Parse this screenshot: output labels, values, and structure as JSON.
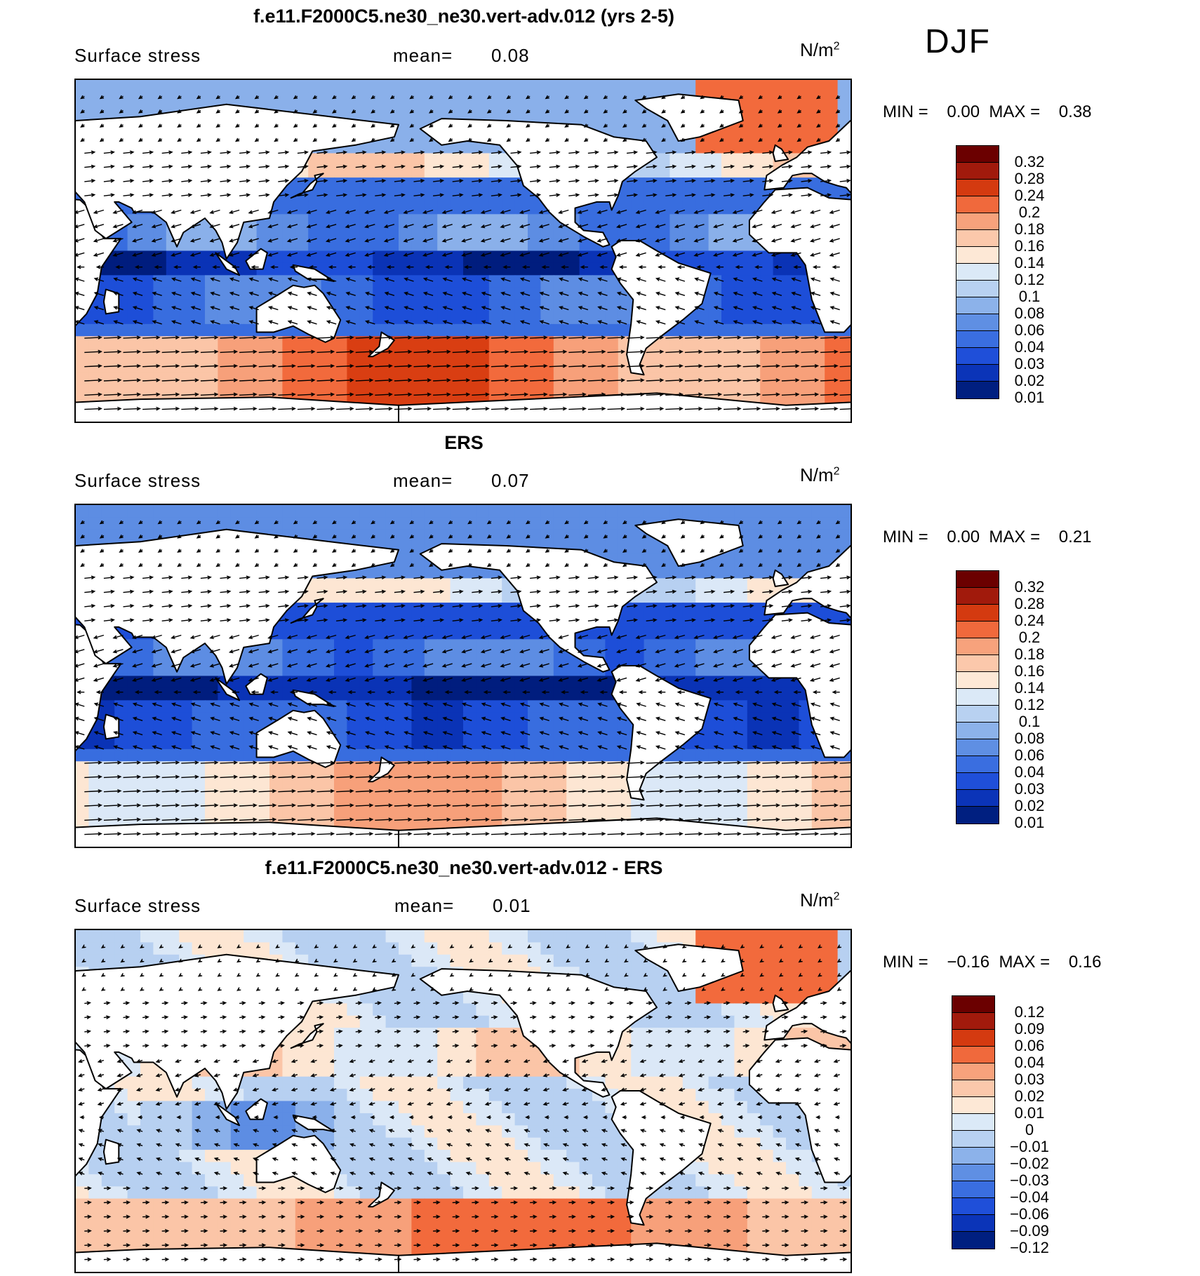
{
  "season": "DJF",
  "panels": [
    {
      "title": "f.e11.F2000C5.ne30_ne30.vert-adv.012 (yrs 2-5)",
      "variable": "Surface stress",
      "mean_label": "mean=",
      "mean_value": "0.08",
      "units": "N/m",
      "units_sup": "2",
      "min_label": "MIN =",
      "min_value": "0.00",
      "max_label": "MAX =",
      "max_value": "0.38",
      "colorbar_levels": [
        "0.32",
        "0.28",
        "0.24",
        "0.2",
        "0.18",
        "0.16",
        "0.14",
        "0.12",
        "0.1",
        "0.08",
        "0.06",
        "0.04",
        "0.03",
        "0.02",
        "0.01"
      ]
    },
    {
      "title": "ERS",
      "variable": "Surface stress",
      "mean_label": "mean=",
      "mean_value": "0.07",
      "units": "N/m",
      "units_sup": "2",
      "min_label": "MIN =",
      "min_value": "0.00",
      "max_label": "MAX =",
      "max_value": "0.21",
      "colorbar_levels": [
        "0.32",
        "0.28",
        "0.24",
        "0.2",
        "0.18",
        "0.16",
        "0.14",
        "0.12",
        "0.1",
        "0.08",
        "0.06",
        "0.04",
        "0.03",
        "0.02",
        "0.01"
      ]
    },
    {
      "title": "f.e11.F2000C5.ne30_ne30.vert-adv.012 - ERS",
      "variable": "Surface stress",
      "mean_label": "mean=",
      "mean_value": "0.01",
      "units": "N/m",
      "units_sup": "2",
      "min_label": "MIN =",
      "min_value": "−0.16",
      "max_label": "MAX =",
      "max_value": "0.16",
      "colorbar_levels": [
        "0.12",
        "0.09",
        "0.06",
        "0.04",
        "0.03",
        "0.02",
        "0.01",
        "0",
        "−0.01",
        "−0.02",
        "−0.03",
        "−0.04",
        "−0.06",
        "−0.09",
        "−0.12"
      ]
    }
  ],
  "colors": {
    "seq_palette": [
      "#6b0000",
      "#a11a0c",
      "#d43a10",
      "#f0693c",
      "#f7a27c",
      "#fbc8ab",
      "#fde8d6",
      "#dbe9f7",
      "#b8d1f1",
      "#8cb2ea",
      "#5f8fe3",
      "#3a6ee0",
      "#1f4fd9",
      "#0b34b8",
      "#001f80"
    ],
    "seq_cmap": [
      "#8b0000",
      "#b5200d",
      "#d93e12",
      "#f26a3c",
      "#f7a07a",
      "#fbc5a7",
      "#fde6d3",
      "#dbe8f7",
      "#b7d0f1",
      "#8ab0ea",
      "#5d8de3",
      "#386ddf",
      "#1d4ed8",
      "#0a33b6",
      "#001d7e"
    ],
    "land": "#ffffff",
    "coast": "#000000",
    "arrow": "#000000"
  }
}
